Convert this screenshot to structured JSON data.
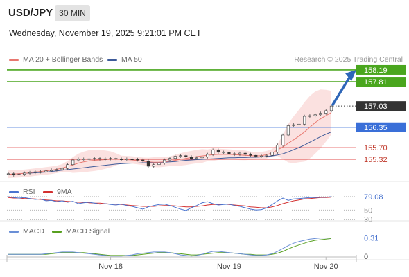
{
  "header": {
    "symbol": "USD/JPY",
    "timeframe": "30 MIN",
    "datetime": "Wednesday, November 19, 2025 9:21:01 PM CET",
    "copyright": "Research © 2025 Trading Central"
  },
  "colors": {
    "resistance": "#4aa61e",
    "support": "#3a6fd8",
    "pivot": "#e04a4a",
    "ma20": "#e8776f",
    "ma50": "#3d5a99",
    "price": "#555555",
    "arrow": "#2e66b8",
    "rsi": "#4a74cf",
    "rsi_ma": "#d33030",
    "macd": "#6a8fd6",
    "macd_signal": "#58a020"
  },
  "legend": {
    "ma20": "MA 20 + Bollinger Bands",
    "ma50": "MA 50",
    "rsi": "RSI",
    "rsi_ma": "9MA",
    "macd": "MACD",
    "macd_signal": "MACD Signal"
  },
  "chart_data": [
    {
      "type": "line",
      "panel": "price",
      "ylim": [
        154.7,
        158.3
      ],
      "x_ticks": [
        "Nov 18",
        "Nov 19",
        "Nov 20"
      ],
      "levels": [
        {
          "value": 158.19,
          "label": "158.19",
          "kind": "resistance"
        },
        {
          "value": 157.81,
          "label": "157.81",
          "kind": "resistance"
        },
        {
          "value": 157.03,
          "label": "157.03",
          "kind": "current"
        },
        {
          "value": 156.35,
          "label": "156.35",
          "kind": "support"
        },
        {
          "value": 155.7,
          "label": "155.70",
          "kind": "pivot"
        },
        {
          "value": 155.32,
          "label": "155.32",
          "kind": "pivot"
        }
      ],
      "forecast_target": 158.19,
      "series": [
        {
          "name": "price",
          "values": [
            154.86,
            154.82,
            154.84,
            154.88,
            154.9,
            154.92,
            154.92,
            154.95,
            154.98,
            154.99,
            155.03,
            155.15,
            155.3,
            155.33,
            155.33,
            155.34,
            155.35,
            155.33,
            155.34,
            155.35,
            155.33,
            155.32,
            155.33,
            155.32,
            155.3,
            155.27,
            155.1,
            155.15,
            155.2,
            155.3,
            155.35,
            155.42,
            155.44,
            155.4,
            155.35,
            155.37,
            155.4,
            155.48,
            155.62,
            155.55,
            155.55,
            155.5,
            155.48,
            155.52,
            155.48,
            155.45,
            155.42,
            155.43,
            155.45,
            155.55,
            155.78,
            156.1,
            156.4,
            156.43,
            156.45,
            156.7,
            156.72,
            156.75,
            156.8,
            156.88,
            157.03
          ]
        },
        {
          "name": "MA 20",
          "values": [
            154.84,
            154.85,
            154.86,
            154.87,
            154.89,
            154.91,
            154.93,
            154.95,
            154.97,
            155.0,
            155.04,
            155.09,
            155.14,
            155.2,
            155.24,
            155.27,
            155.29,
            155.3,
            155.31,
            155.32,
            155.32,
            155.32,
            155.31,
            155.3,
            155.28,
            155.26,
            155.24,
            155.23,
            155.23,
            155.24,
            155.26,
            155.29,
            155.32,
            155.35,
            155.38,
            155.41,
            155.43,
            155.45,
            155.47,
            155.48,
            155.48,
            155.48,
            155.47,
            155.46,
            155.45,
            155.44,
            155.43,
            155.44,
            155.47,
            155.53,
            155.62,
            155.72,
            155.84,
            155.95,
            156.07,
            156.2,
            156.35,
            156.5,
            156.62,
            156.72,
            156.82
          ]
        },
        {
          "name": "MA 50",
          "values": [
            154.84,
            154.85,
            154.86,
            154.87,
            154.88,
            154.89,
            154.9,
            154.91,
            154.93,
            154.95,
            154.97,
            154.99,
            155.01,
            155.03,
            155.05,
            155.07,
            155.09,
            155.11,
            155.13,
            155.15,
            155.17,
            155.18,
            155.19,
            155.2,
            155.2,
            155.21,
            155.21,
            155.22,
            155.22,
            155.23,
            155.24,
            155.25,
            155.27,
            155.29,
            155.3,
            155.31,
            155.32,
            155.33,
            155.34,
            155.35,
            155.36,
            155.37,
            155.37,
            155.38,
            155.38,
            155.39,
            155.39,
            155.4,
            155.41,
            155.43,
            155.46,
            155.5,
            155.56,
            155.63,
            155.7,
            155.78,
            155.87,
            155.96,
            156.05,
            156.13,
            156.2
          ]
        }
      ]
    },
    {
      "type": "line",
      "panel": "rsi",
      "ylim": [
        28,
        85
      ],
      "levels": [
        {
          "value": 79.08,
          "label": "79.08",
          "kind": "current"
        },
        {
          "value": 50,
          "label": "50",
          "kind": "grid"
        },
        {
          "value": 30,
          "label": "30",
          "kind": "grid"
        }
      ],
      "series": [
        {
          "name": "RSI",
          "values": [
            79,
            77,
            76,
            77,
            75,
            73,
            74,
            70,
            71,
            68,
            70,
            67,
            69,
            64,
            66,
            67,
            65,
            63,
            64,
            62,
            61,
            63,
            60,
            58,
            55,
            52,
            57,
            60,
            62,
            63,
            60,
            56,
            52,
            49,
            55,
            60,
            66,
            68,
            64,
            61,
            62,
            63,
            60,
            58,
            55,
            52,
            50,
            51,
            55,
            62,
            70,
            76,
            71,
            74,
            75,
            76,
            77,
            77,
            78,
            78,
            79.08
          ]
        },
        {
          "name": "9MA",
          "values": [
            77,
            76,
            76,
            75,
            75,
            74,
            73,
            72,
            71,
            70,
            70,
            69,
            68,
            67,
            67,
            66,
            65,
            65,
            64,
            63,
            63,
            62,
            61,
            60,
            59,
            58,
            58,
            58,
            59,
            60,
            60,
            59,
            58,
            57,
            57,
            58,
            59,
            61,
            62,
            62,
            63,
            62,
            61,
            60,
            59,
            57,
            56,
            55,
            55,
            57,
            60,
            64,
            67,
            70,
            72,
            74,
            75,
            76,
            77,
            77,
            78
          ]
        }
      ]
    },
    {
      "type": "line",
      "panel": "macd",
      "ylim": [
        -0.05,
        0.4
      ],
      "levels": [
        {
          "value": 0.31,
          "label": "0.31",
          "kind": "current"
        },
        {
          "value": 0,
          "label": "0",
          "kind": "grid"
        }
      ],
      "series": [
        {
          "name": "MACD",
          "values": [
            0.03,
            0.03,
            0.03,
            0.03,
            0.03,
            0.03,
            0.03,
            0.04,
            0.05,
            0.06,
            0.07,
            0.07,
            0.07,
            0.06,
            0.05,
            0.04,
            0.03,
            0.02,
            0.01,
            0.0,
            0.0,
            0.0,
            0.01,
            0.02,
            0.04,
            0.05,
            0.06,
            0.07,
            0.07,
            0.07,
            0.06,
            0.04,
            0.02,
            0.01,
            0.0,
            0.01,
            0.03,
            0.06,
            0.08,
            0.08,
            0.07,
            0.06,
            0.05,
            0.04,
            0.03,
            0.02,
            0.01,
            0.01,
            0.02,
            0.04,
            0.08,
            0.13,
            0.18,
            0.22,
            0.25,
            0.27,
            0.29,
            0.3,
            0.31,
            0.31,
            0.31
          ]
        },
        {
          "name": "MACD Signal",
          "values": [
            0.03,
            0.03,
            0.03,
            0.03,
            0.03,
            0.03,
            0.03,
            0.03,
            0.04,
            0.05,
            0.06,
            0.06,
            0.06,
            0.06,
            0.06,
            0.05,
            0.04,
            0.03,
            0.02,
            0.01,
            0.01,
            0.01,
            0.01,
            0.01,
            0.02,
            0.03,
            0.04,
            0.05,
            0.06,
            0.06,
            0.06,
            0.05,
            0.04,
            0.03,
            0.02,
            0.02,
            0.03,
            0.04,
            0.05,
            0.06,
            0.06,
            0.06,
            0.05,
            0.04,
            0.03,
            0.03,
            0.02,
            0.02,
            0.02,
            0.03,
            0.05,
            0.08,
            0.12,
            0.16,
            0.19,
            0.22,
            0.25,
            0.27,
            0.28,
            0.29,
            0.3
          ]
        }
      ]
    }
  ]
}
